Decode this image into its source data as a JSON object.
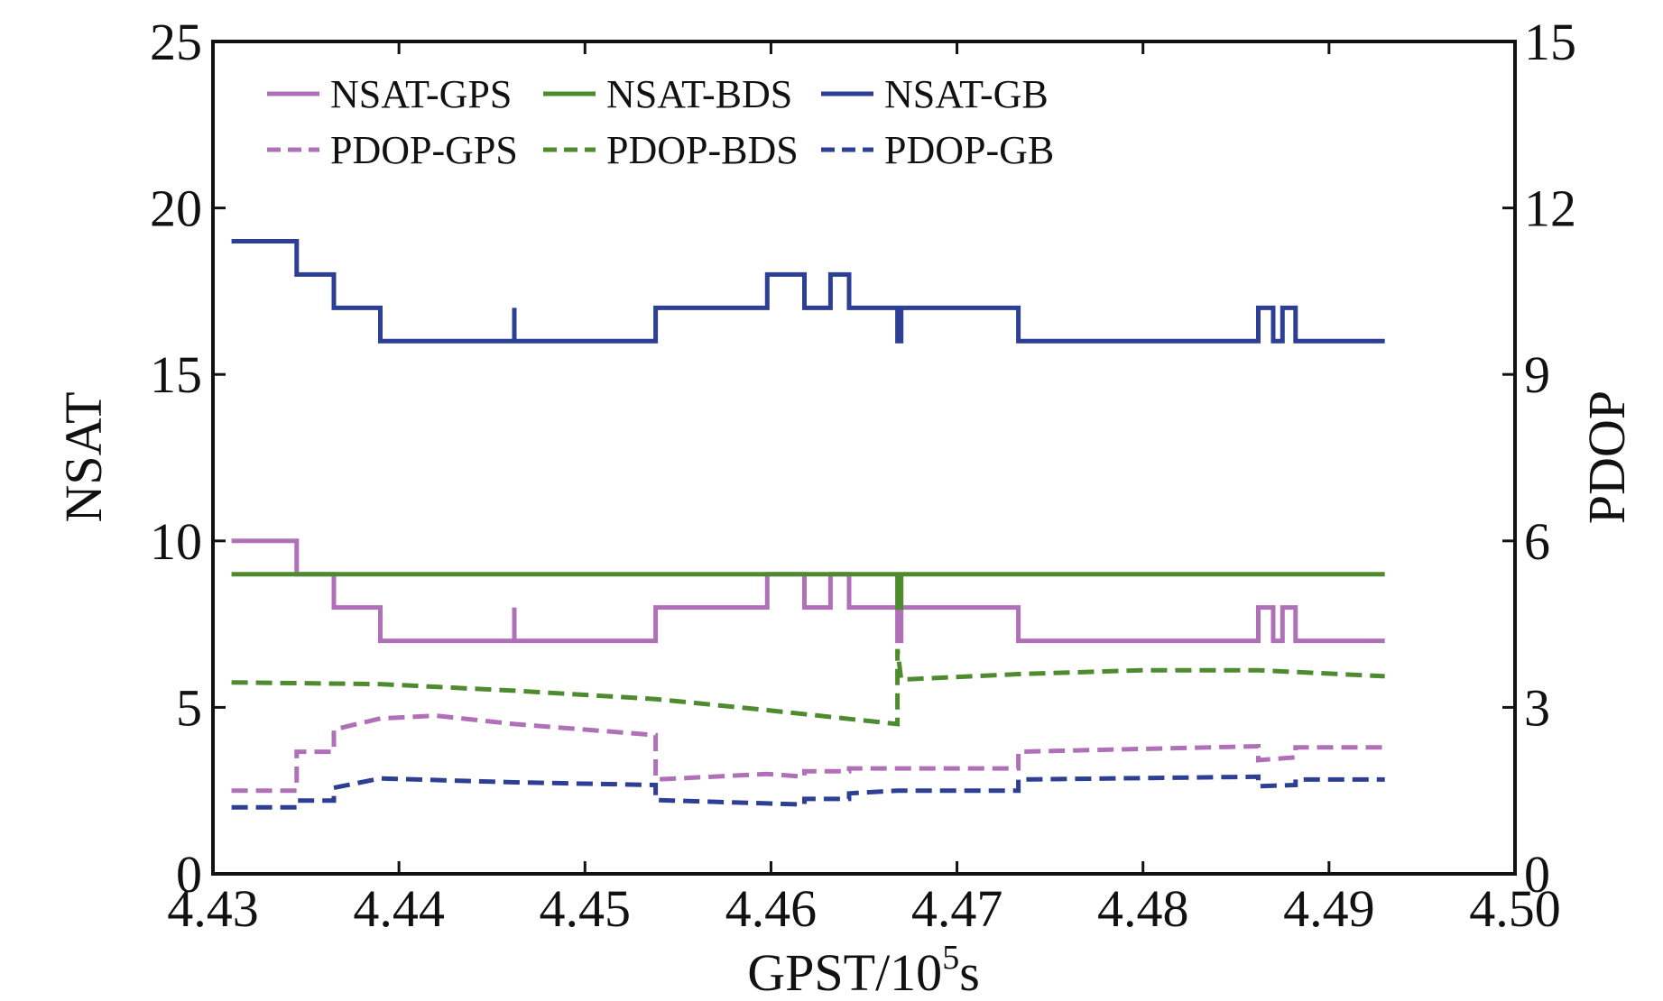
{
  "chart_data": {
    "type": "line",
    "xlabel": {
      "base": "GPST/10",
      "sup": "5",
      "unit": "s"
    },
    "ylabel_left": "NSAT",
    "ylabel_right": "PDOP",
    "xlim": [
      4.43,
      4.5
    ],
    "ylim_left": [
      0,
      25
    ],
    "ylim_right": [
      0,
      15
    ],
    "x_ticks": [
      "4.43",
      "4.44",
      "4.45",
      "4.46",
      "4.47",
      "4.48",
      "4.49",
      "4.50"
    ],
    "y_left_ticks": [
      "0",
      "5",
      "10",
      "15",
      "20",
      "25"
    ],
    "y_right_ticks": [
      "0",
      "3",
      "6",
      "9",
      "12",
      "15"
    ],
    "grid": false,
    "legend_position": "top-left",
    "colors": {
      "gps": "#b070b8",
      "bds": "#4e8a2e",
      "gb": "#2c3f94"
    },
    "series": [
      {
        "name": "NSAT-GPS",
        "axis": "left",
        "style": "solid",
        "color": "#b070b8",
        "step": true,
        "points": [
          [
            4.431,
            10
          ],
          [
            4.4345,
            9
          ],
          [
            4.4365,
            8
          ],
          [
            4.439,
            7
          ],
          [
            4.4462,
            7
          ],
          [
            4.4462,
            8
          ],
          [
            4.4462,
            7
          ],
          [
            4.4538,
            7
          ],
          [
            4.4538,
            8
          ],
          [
            4.4598,
            8
          ],
          [
            4.4598,
            9
          ],
          [
            4.4618,
            9
          ],
          [
            4.4618,
            8
          ],
          [
            4.4632,
            8
          ],
          [
            4.4632,
            9
          ],
          [
            4.4642,
            9
          ],
          [
            4.4642,
            8
          ],
          [
            4.4668,
            8
          ],
          [
            4.4668,
            7
          ],
          [
            4.467,
            8
          ],
          [
            4.4733,
            8
          ],
          [
            4.4733,
            7
          ],
          [
            4.4862,
            7
          ],
          [
            4.4862,
            8
          ],
          [
            4.487,
            8
          ],
          [
            4.487,
            7
          ],
          [
            4.4875,
            7
          ],
          [
            4.4875,
            8
          ],
          [
            4.4882,
            8
          ],
          [
            4.4882,
            7
          ],
          [
            4.493,
            7
          ]
        ]
      },
      {
        "name": "NSAT-BDS",
        "axis": "left",
        "style": "solid",
        "color": "#4e8a2e",
        "step": true,
        "points": [
          [
            4.431,
            9
          ],
          [
            4.4668,
            9
          ],
          [
            4.4668,
            8
          ],
          [
            4.467,
            8
          ],
          [
            4.467,
            9
          ],
          [
            4.493,
            9
          ]
        ]
      },
      {
        "name": "NSAT-GB",
        "axis": "left",
        "style": "solid",
        "color": "#2c3f94",
        "step": true,
        "points": [
          [
            4.431,
            19
          ],
          [
            4.4345,
            18
          ],
          [
            4.4365,
            17
          ],
          [
            4.439,
            16
          ],
          [
            4.4462,
            16
          ],
          [
            4.4462,
            17
          ],
          [
            4.4462,
            16
          ],
          [
            4.4538,
            16
          ],
          [
            4.4538,
            17
          ],
          [
            4.4598,
            17
          ],
          [
            4.4598,
            18
          ],
          [
            4.4618,
            18
          ],
          [
            4.4618,
            17
          ],
          [
            4.4632,
            17
          ],
          [
            4.4632,
            18
          ],
          [
            4.4642,
            18
          ],
          [
            4.4642,
            17
          ],
          [
            4.4668,
            17
          ],
          [
            4.4668,
            16
          ],
          [
            4.467,
            17
          ],
          [
            4.4733,
            17
          ],
          [
            4.4733,
            16
          ],
          [
            4.4862,
            16
          ],
          [
            4.4862,
            17
          ],
          [
            4.487,
            17
          ],
          [
            4.487,
            16
          ],
          [
            4.4875,
            16
          ],
          [
            4.4875,
            17
          ],
          [
            4.4882,
            17
          ],
          [
            4.4882,
            16
          ],
          [
            4.493,
            16
          ]
        ]
      },
      {
        "name": "PDOP-GPS",
        "axis": "right",
        "style": "dashed",
        "color": "#b070b8",
        "step": false,
        "points": [
          [
            4.431,
            1.5
          ],
          [
            4.4345,
            1.5
          ],
          [
            4.4345,
            2.2
          ],
          [
            4.4365,
            2.2
          ],
          [
            4.4365,
            2.6
          ],
          [
            4.439,
            2.8
          ],
          [
            4.442,
            2.85
          ],
          [
            4.4462,
            2.7
          ],
          [
            4.45,
            2.6
          ],
          [
            4.4538,
            2.5
          ],
          [
            4.4538,
            1.7
          ],
          [
            4.4598,
            1.8
          ],
          [
            4.4618,
            1.75
          ],
          [
            4.4618,
            1.85
          ],
          [
            4.4642,
            1.85
          ],
          [
            4.4642,
            1.9
          ],
          [
            4.4668,
            1.9
          ],
          [
            4.4733,
            1.9
          ],
          [
            4.4733,
            2.2
          ],
          [
            4.4862,
            2.3
          ],
          [
            4.4862,
            2.05
          ],
          [
            4.4882,
            2.1
          ],
          [
            4.4882,
            2.28
          ],
          [
            4.493,
            2.28
          ]
        ]
      },
      {
        "name": "PDOP-BDS",
        "axis": "right",
        "style": "dashed",
        "color": "#4e8a2e",
        "step": false,
        "points": [
          [
            4.431,
            3.45
          ],
          [
            4.439,
            3.42
          ],
          [
            4.4462,
            3.3
          ],
          [
            4.4538,
            3.15
          ],
          [
            4.4598,
            2.95
          ],
          [
            4.4668,
            2.7
          ],
          [
            4.4668,
            4.05
          ],
          [
            4.467,
            3.5
          ],
          [
            4.4733,
            3.6
          ],
          [
            4.48,
            3.67
          ],
          [
            4.4862,
            3.67
          ],
          [
            4.493,
            3.56
          ]
        ]
      },
      {
        "name": "PDOP-GB",
        "axis": "right",
        "style": "dashed",
        "color": "#2c3f94",
        "step": false,
        "points": [
          [
            4.431,
            1.2
          ],
          [
            4.4345,
            1.2
          ],
          [
            4.4345,
            1.32
          ],
          [
            4.4365,
            1.32
          ],
          [
            4.4365,
            1.55
          ],
          [
            4.439,
            1.72
          ],
          [
            4.4462,
            1.65
          ],
          [
            4.4538,
            1.6
          ],
          [
            4.4538,
            1.33
          ],
          [
            4.4598,
            1.27
          ],
          [
            4.4618,
            1.25
          ],
          [
            4.4618,
            1.35
          ],
          [
            4.4642,
            1.35
          ],
          [
            4.4642,
            1.45
          ],
          [
            4.4668,
            1.5
          ],
          [
            4.4733,
            1.5
          ],
          [
            4.4733,
            1.7
          ],
          [
            4.4862,
            1.75
          ],
          [
            4.4862,
            1.58
          ],
          [
            4.4882,
            1.6
          ],
          [
            4.4882,
            1.7
          ],
          [
            4.493,
            1.7
          ]
        ]
      }
    ]
  }
}
